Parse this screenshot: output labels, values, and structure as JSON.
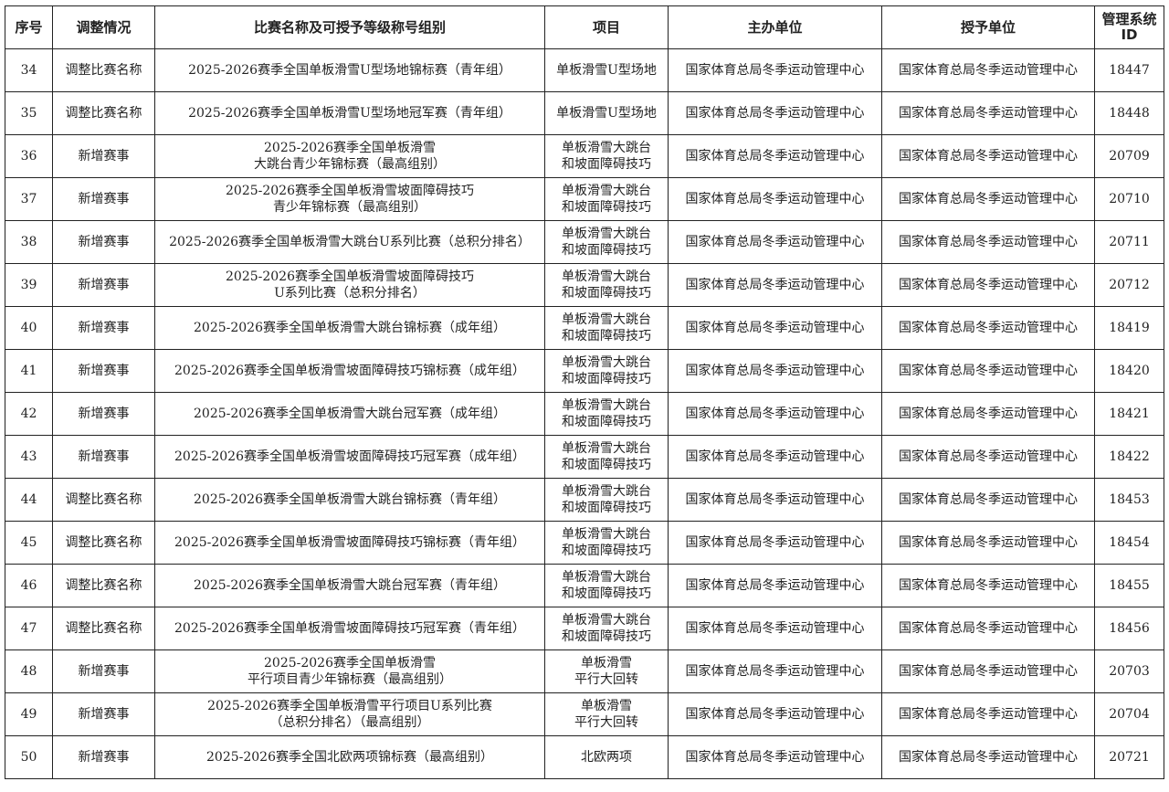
{
  "table": {
    "headers": [
      "序号",
      "调整情况",
      "比赛名称及可授予等级称号组别",
      "项目",
      "主办单位",
      "授予单位",
      "管理系统\nID"
    ],
    "rows": [
      [
        "34",
        "调整比赛名称",
        "2025-2026赛季全国单板滑雪U型场地锦标赛（青年组）",
        "单板滑雪U型场地",
        "国家体育总局冬季运动管理中心",
        "国家体育总局冬季运动管理中心",
        "18447"
      ],
      [
        "35",
        "调整比赛名称",
        "2025-2026赛季全国单板滑雪U型场地冠军赛（青年组）",
        "单板滑雪U型场地",
        "国家体育总局冬季运动管理中心",
        "国家体育总局冬季运动管理中心",
        "18448"
      ],
      [
        "36",
        "新增赛事",
        "2025-2026赛季全国单板滑雪\n大跳台青少年锦标赛（最高组别）",
        "单板滑雪大跳台\n和坡面障碍技巧",
        "国家体育总局冬季运动管理中心",
        "国家体育总局冬季运动管理中心",
        "20709"
      ],
      [
        "37",
        "新增赛事",
        "2025-2026赛季全国单板滑雪坡面障碍技巧\n青少年锦标赛（最高组别）",
        "单板滑雪大跳台\n和坡面障碍技巧",
        "国家体育总局冬季运动管理中心",
        "国家体育总局冬季运动管理中心",
        "20710"
      ],
      [
        "38",
        "新增赛事",
        "2025-2026赛季全国单板滑雪大跳台U系列比赛（总积分排名）",
        "单板滑雪大跳台\n和坡面障碍技巧",
        "国家体育总局冬季运动管理中心",
        "国家体育总局冬季运动管理中心",
        "20711"
      ],
      [
        "39",
        "新增赛事",
        "2025-2026赛季全国单板滑雪坡面障碍技巧\nU系列比赛（总积分排名）",
        "单板滑雪大跳台\n和坡面障碍技巧",
        "国家体育总局冬季运动管理中心",
        "国家体育总局冬季运动管理中心",
        "20712"
      ],
      [
        "40",
        "新增赛事",
        "2025-2026赛季全国单板滑雪大跳台锦标赛（成年组）",
        "单板滑雪大跳台\n和坡面障碍技巧",
        "国家体育总局冬季运动管理中心",
        "国家体育总局冬季运动管理中心",
        "18419"
      ],
      [
        "41",
        "新增赛事",
        "2025-2026赛季全国单板滑雪坡面障碍技巧锦标赛（成年组）",
        "单板滑雪大跳台\n和坡面障碍技巧",
        "国家体育总局冬季运动管理中心",
        "国家体育总局冬季运动管理中心",
        "18420"
      ],
      [
        "42",
        "新增赛事",
        "2025-2026赛季全国单板滑雪大跳台冠军赛（成年组）",
        "单板滑雪大跳台\n和坡面障碍技巧",
        "国家体育总局冬季运动管理中心",
        "国家体育总局冬季运动管理中心",
        "18421"
      ],
      [
        "43",
        "新增赛事",
        "2025-2026赛季全国单板滑雪坡面障碍技巧冠军赛（成年组）",
        "单板滑雪大跳台\n和坡面障碍技巧",
        "国家体育总局冬季运动管理中心",
        "国家体育总局冬季运动管理中心",
        "18422"
      ],
      [
        "44",
        "调整比赛名称",
        "2025-2026赛季全国单板滑雪大跳台锦标赛（青年组）",
        "单板滑雪大跳台\n和坡面障碍技巧",
        "国家体育总局冬季运动管理中心",
        "国家体育总局冬季运动管理中心",
        "18453"
      ],
      [
        "45",
        "调整比赛名称",
        "2025-2026赛季全国单板滑雪坡面障碍技巧锦标赛（青年组）",
        "单板滑雪大跳台\n和坡面障碍技巧",
        "国家体育总局冬季运动管理中心",
        "国家体育总局冬季运动管理中心",
        "18454"
      ],
      [
        "46",
        "调整比赛名称",
        "2025-2026赛季全国单板滑雪大跳台冠军赛（青年组）",
        "单板滑雪大跳台\n和坡面障碍技巧",
        "国家体育总局冬季运动管理中心",
        "国家体育总局冬季运动管理中心",
        "18455"
      ],
      [
        "47",
        "调整比赛名称",
        "2025-2026赛季全国单板滑雪坡面障碍技巧冠军赛（青年组）",
        "单板滑雪大跳台\n和坡面障碍技巧",
        "国家体育总局冬季运动管理中心",
        "国家体育总局冬季运动管理中心",
        "18456"
      ],
      [
        "48",
        "新增赛事",
        "2025-2026赛季全国单板滑雪\n平行项目青少年锦标赛（最高组别）",
        "单板滑雪\n平行大回转",
        "国家体育总局冬季运动管理中心",
        "国家体育总局冬季运动管理中心",
        "20703"
      ],
      [
        "49",
        "新增赛事",
        "2025-2026赛季全国单板滑雪平行项目U系列比赛\n（总积分排名）（最高组别）",
        "单板滑雪\n平行大回转",
        "国家体育总局冬季运动管理中心",
        "国家体育总局冬季运动管理中心",
        "20704"
      ],
      [
        "50",
        "新增赛事",
        "2025-2026赛季全国北欧两项锦标赛（最高组别）",
        "北欧两项",
        "国家体育总局冬季运动管理中心",
        "国家体育总局冬季运动管理中心",
        "20721"
      ]
    ]
  }
}
